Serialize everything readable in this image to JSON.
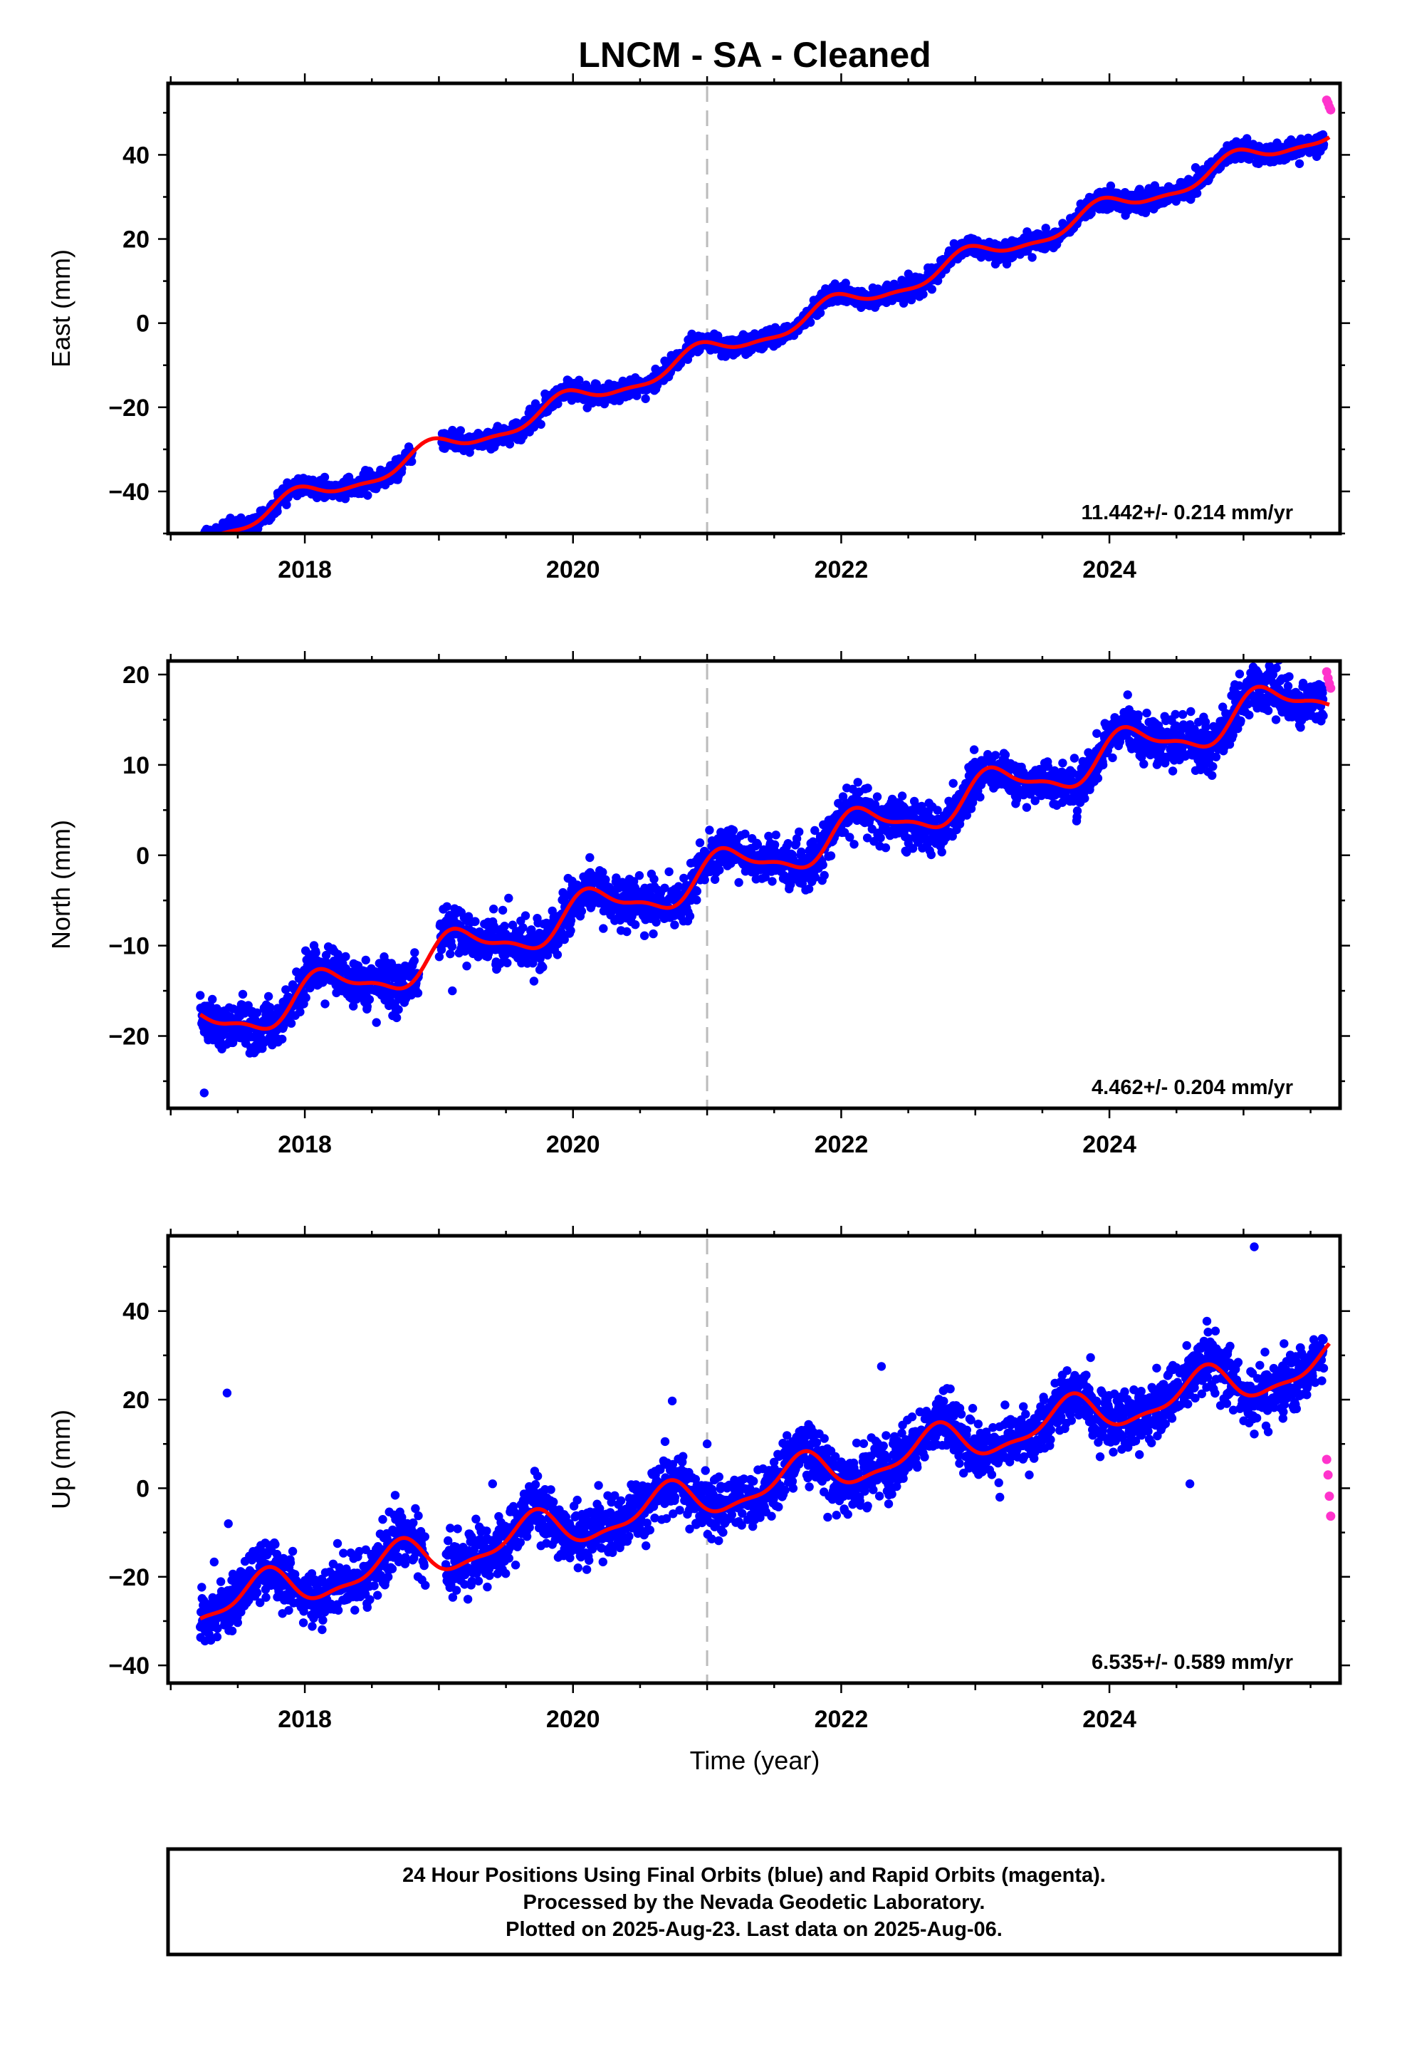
{
  "title": "LNCM  - SA - Cleaned",
  "xlabel": "Time (year)",
  "footer": [
    "24 Hour Positions Using Final Orbits (blue) and Rapid Orbits (magenta).",
    "Processed by the Nevada Geodetic Laboratory.",
    "Plotted on 2025-Aug-23. Last data on 2025-Aug-06."
  ],
  "colors": {
    "final_orbits": "#0000ff",
    "rapid_orbits": "#ff33cc",
    "model_fit": "#ff0000",
    "step_line": "#bbbbbb"
  },
  "chart_data": [
    {
      "type": "scatter",
      "name": "east",
      "ylabel": "East (mm)",
      "rate_label": "11.442+/- 0.214 mm/yr",
      "xlim": [
        2016.98,
        2025.72
      ],
      "ylim": [
        -50,
        57
      ],
      "xticks": [
        2018,
        2020,
        2022,
        2024
      ],
      "yticks": [
        -40,
        -20,
        0,
        20,
        40
      ],
      "step_year": 2021.0,
      "rate": 11.442,
      "intercept_year": 2021.0,
      "intercept_value": -7.2,
      "annual_amp": 2.4,
      "annual_phase": 0.3,
      "noise": 1.1,
      "gap": [
        2018.8,
        2019.02
      ],
      "outliers": [],
      "rapid": [
        [
          2025.62,
          53.0
        ],
        [
          2025.63,
          52.3
        ],
        [
          2025.64,
          51.4
        ],
        [
          2025.65,
          50.7
        ]
      ]
    },
    {
      "type": "scatter",
      "name": "north",
      "ylabel": "North (mm)",
      "rate_label": "4.462+/- 0.204 mm/yr",
      "xlim": [
        2016.98,
        2025.72
      ],
      "ylim": [
        -28,
        21.5
      ],
      "xticks": [
        2018,
        2020,
        2022,
        2024
      ],
      "yticks": [
        -20,
        -10,
        0,
        10,
        20
      ],
      "step_year": 2021.0,
      "rate": 4.462,
      "intercept_year": 2021.0,
      "intercept_value": -2.3,
      "annual_amp": 2.1,
      "annual_phase": 0.1,
      "noise": 1.3,
      "gap": [
        2018.85,
        2019.0
      ],
      "outliers": [
        [
          2017.25,
          -26.3
        ],
        [
          2019.1,
          -15.0
        ]
      ],
      "rapid": [
        [
          2025.62,
          20.3
        ],
        [
          2025.63,
          19.6
        ],
        [
          2025.64,
          19.0
        ],
        [
          2025.65,
          18.5
        ]
      ]
    },
    {
      "type": "scatter",
      "name": "up",
      "ylabel": "Up (mm)",
      "rate_label": "6.535+/- 0.589 mm/yr",
      "xlim": [
        2016.98,
        2025.72
      ],
      "ylim": [
        -44,
        57
      ],
      "xticks": [
        2018,
        2020,
        2022,
        2024
      ],
      "yticks": [
        -40,
        -20,
        0,
        20,
        40
      ],
      "step_year": 2021.0,
      "rate": 6.535,
      "intercept_year": 2021.0,
      "intercept_value": -2.0,
      "annual_amp": 4.2,
      "annual_phase": 0.55,
      "noise": 3.3,
      "gap": [
        2018.9,
        2019.05
      ],
      "outliers": [
        [
          2017.42,
          21.5
        ],
        [
          2017.43,
          -8.0
        ],
        [
          2020.74,
          19.7
        ],
        [
          2021.0,
          10.0
        ],
        [
          2025.08,
          54.5
        ],
        [
          2024.6,
          1.0
        ],
        [
          2019.4,
          1.0
        ],
        [
          2022.3,
          27.5
        ]
      ],
      "rapid": [
        [
          2025.62,
          6.5
        ],
        [
          2025.63,
          3.0
        ],
        [
          2025.64,
          -1.8
        ],
        [
          2025.65,
          -6.3
        ]
      ]
    }
  ]
}
